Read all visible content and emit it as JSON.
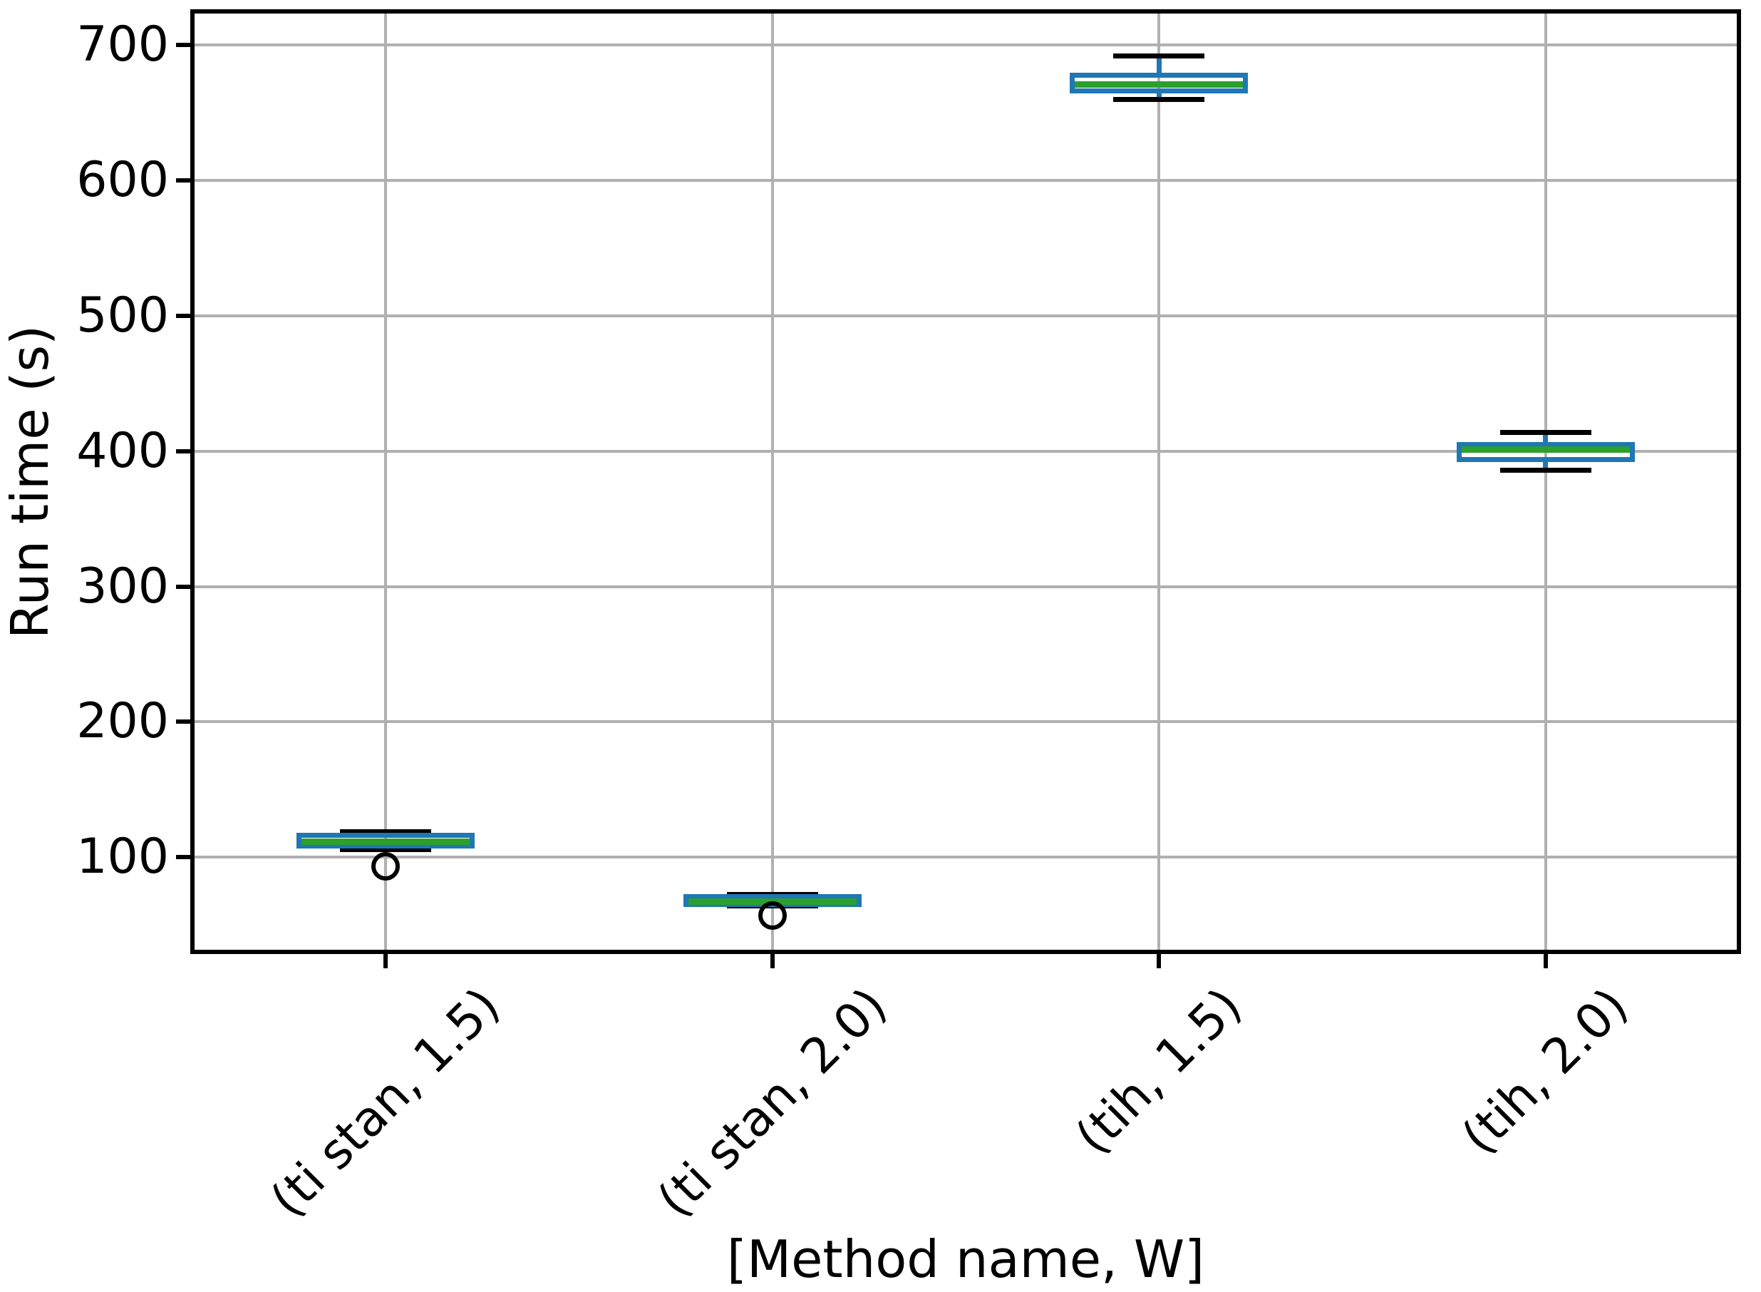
{
  "chart_data": {
    "type": "box",
    "title": "",
    "xlabel": "[Method name, W]",
    "ylabel": "Run time (s)",
    "categories": [
      "(ti stan, 1.5)",
      "(ti stan, 2.0)",
      "(tih, 1.5)",
      "(tih, 2.0)"
    ],
    "yticks": [
      100,
      200,
      300,
      400,
      500,
      600,
      700
    ],
    "ylim": [
      30,
      725
    ],
    "grid": true,
    "legend": "none",
    "boxes": [
      {
        "category": "(ti stan, 1.5)",
        "whisker_low": 105.5,
        "q1": 108.5,
        "median": 111.5,
        "q3": 116,
        "whisker_high": 119,
        "outliers": [
          93
        ]
      },
      {
        "category": "(ti stan, 2.0)",
        "whisker_low": 64,
        "q1": 65,
        "median": 67,
        "q3": 71,
        "whisker_high": 72.5,
        "outliers": [
          57
        ]
      },
      {
        "category": "(tih, 1.5)",
        "whisker_low": 660,
        "q1": 666,
        "median": 671,
        "q3": 678,
        "whisker_high": 692,
        "outliers": []
      },
      {
        "category": "(tih, 2.0)",
        "whisker_low": 386,
        "q1": 394,
        "median": 401,
        "q3": 405,
        "whisker_high": 414,
        "outliers": []
      }
    ],
    "colors": {
      "box": "#1f77b4",
      "whisker": "#1f77b4",
      "cap": "#000000",
      "median": "#2ca02c",
      "flier": "#000000",
      "grid": "#b0b0b0",
      "spine": "#000000",
      "text": "#000000",
      "background": "#ffffff"
    }
  }
}
